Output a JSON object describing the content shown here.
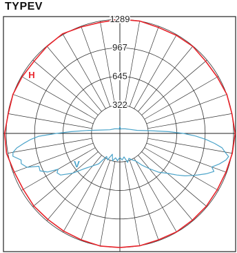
{
  "title": "TYPEV",
  "chart_data": {
    "type": "polar",
    "radial_ticks": [
      322,
      645,
      967,
      1289
    ],
    "radial_range": [
      0,
      1289
    ],
    "angular_step_deg": 10,
    "angle_reference": "0° pointing down, 180° pointing up",
    "series": [
      {
        "name": "H",
        "color": "#e8232a",
        "points": [
          [
            0,
            1290
          ],
          [
            10,
            1292
          ],
          [
            20,
            1280
          ],
          [
            30,
            1275
          ],
          [
            40,
            1270
          ],
          [
            50,
            1275
          ],
          [
            60,
            1265
          ],
          [
            70,
            1275
          ],
          [
            80,
            1305
          ],
          [
            90,
            1307
          ],
          [
            100,
            1285
          ],
          [
            110,
            1290
          ],
          [
            120,
            1280
          ],
          [
            130,
            1270
          ],
          [
            140,
            1285
          ],
          [
            150,
            1300
          ],
          [
            160,
            1280
          ],
          [
            170,
            1275
          ],
          [
            180,
            1290
          ],
          [
            190,
            1290
          ],
          [
            200,
            1275
          ],
          [
            210,
            1280
          ],
          [
            220,
            1285
          ],
          [
            230,
            1270
          ],
          [
            240,
            1275
          ],
          [
            250,
            1290
          ],
          [
            260,
            1290
          ],
          [
            270,
            1307
          ],
          [
            280,
            1295
          ],
          [
            290,
            1280
          ],
          [
            300,
            1275
          ],
          [
            310,
            1280
          ],
          [
            320,
            1280
          ],
          [
            330,
            1285
          ],
          [
            340,
            1280
          ],
          [
            350,
            1290
          ],
          [
            360,
            1290
          ]
        ]
      },
      {
        "name": "V",
        "color": "#4aa3c9",
        "points": [
          [
            0,
            270
          ],
          [
            5,
            310
          ],
          [
            10,
            280
          ],
          [
            15,
            320
          ],
          [
            20,
            250
          ],
          [
            25,
            330
          ],
          [
            30,
            300
          ],
          [
            35,
            420
          ],
          [
            40,
            480
          ],
          [
            45,
            560
          ],
          [
            50,
            700
          ],
          [
            55,
            820
          ],
          [
            58,
            840
          ],
          [
            60,
            810
          ],
          [
            62,
            930
          ],
          [
            65,
            1000
          ],
          [
            68,
            990
          ],
          [
            70,
            1120
          ],
          [
            73,
            1170
          ],
          [
            75,
            1160
          ],
          [
            78,
            1240
          ],
          [
            80,
            1230
          ],
          [
            82,
            1180
          ],
          [
            84,
            1100
          ],
          [
            86,
            1020
          ],
          [
            88,
            920
          ],
          [
            90,
            720
          ],
          [
            92,
            560
          ],
          [
            95,
            380
          ],
          [
            100,
            220
          ],
          [
            110,
            120
          ],
          [
            130,
            80
          ],
          [
            150,
            60
          ],
          [
            170,
            50
          ],
          [
            180,
            80
          ],
          [
            190,
            50
          ],
          [
            210,
            60
          ],
          [
            230,
            80
          ],
          [
            250,
            130
          ],
          [
            260,
            200
          ],
          [
            265,
            350
          ],
          [
            268,
            560
          ],
          [
            270,
            720
          ],
          [
            272,
            860
          ],
          [
            274,
            980
          ],
          [
            276,
            1080
          ],
          [
            278,
            1170
          ],
          [
            280,
            1210
          ],
          [
            282,
            1260
          ],
          [
            284,
            1240
          ],
          [
            287,
            1180
          ],
          [
            290,
            1110
          ],
          [
            292,
            1150
          ],
          [
            295,
            1080
          ],
          [
            298,
            1000
          ],
          [
            300,
            950
          ],
          [
            303,
            880
          ],
          [
            306,
            800
          ],
          [
            310,
            700
          ],
          [
            315,
            620
          ],
          [
            320,
            520
          ],
          [
            325,
            440
          ],
          [
            330,
            360
          ],
          [
            335,
            330
          ],
          [
            340,
            300
          ],
          [
            345,
            340
          ],
          [
            350,
            270
          ],
          [
            355,
            300
          ],
          [
            360,
            270
          ]
        ]
      }
    ]
  }
}
